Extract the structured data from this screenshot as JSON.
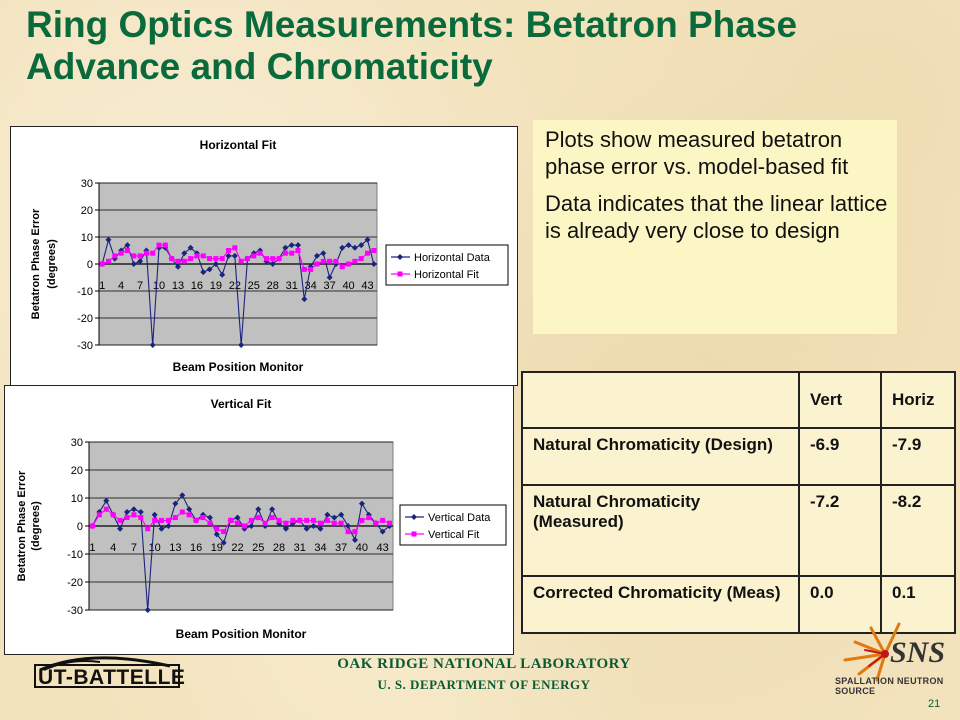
{
  "title": "Ring Optics Measurements: Betatron Phase Advance and Chromaticity",
  "notes": [
    "Plots show measured betatron phase error vs. model-based fit",
    "Data indicates that the linear lattice is already very close to design"
  ],
  "colors": {
    "data": "#1a237e",
    "fit": "#ff00ff",
    "plot_bg": "#c0c0c0",
    "title": "#0a6a3c"
  },
  "chart_data": [
    {
      "type": "line",
      "title": "Horizontal Fit",
      "xlabel": "Beam Position Monitor",
      "ylabel": "Betatron Phase Error (degrees)",
      "ylim": [
        -30,
        30
      ],
      "yticks": [
        -30,
        -20,
        -10,
        0,
        10,
        20,
        30
      ],
      "xticks": [
        "1",
        "4",
        "7",
        "10",
        "13",
        "16",
        "19",
        "22",
        "25",
        "28",
        "31",
        "34",
        "37",
        "40",
        "43"
      ],
      "legend": "right",
      "grid": true,
      "series": [
        {
          "name": "Horizontal Data",
          "marker": "diamond",
          "values": [
            0,
            9,
            2,
            5,
            7,
            0,
            1,
            5,
            -30,
            6,
            6,
            2,
            -1,
            4,
            6,
            4,
            -3,
            -2,
            0,
            -4,
            3,
            3,
            -30,
            2,
            4,
            5,
            1,
            0,
            2,
            6,
            7,
            7,
            -13,
            -1,
            3,
            4,
            -5,
            0,
            6,
            7,
            6,
            7,
            9,
            0
          ]
        },
        {
          "name": "Horizontal Fit",
          "marker": "square",
          "values": [
            0,
            1,
            3,
            4,
            5,
            3,
            3,
            4,
            4,
            7,
            7,
            2,
            1,
            1,
            2,
            3,
            3,
            2,
            2,
            2,
            5,
            6,
            1,
            2,
            3,
            4,
            2,
            2,
            2,
            4,
            4,
            5,
            -2,
            -2,
            0,
            1,
            1,
            1,
            -1,
            0,
            1,
            2,
            4,
            5
          ]
        }
      ]
    },
    {
      "type": "line",
      "title": "Vertical Fit",
      "xlabel": "Beam Position Monitor",
      "ylabel": "Betatron Phase Error (degrees)",
      "ylim": [
        -30,
        30
      ],
      "yticks": [
        -30,
        -20,
        -10,
        0,
        10,
        20,
        30
      ],
      "xticks": [
        "1",
        "4",
        "7",
        "10",
        "13",
        "16",
        "19",
        "22",
        "25",
        "28",
        "31",
        "34",
        "37",
        "40",
        "43"
      ],
      "legend": "right",
      "grid": true,
      "series": [
        {
          "name": "Vertical Data",
          "marker": "diamond",
          "values": [
            0,
            5,
            9,
            4,
            -1,
            5,
            6,
            5,
            -30,
            4,
            -1,
            0,
            8,
            11,
            6,
            2,
            4,
            3,
            -3,
            -6,
            2,
            3,
            -1,
            0,
            6,
            0,
            6,
            1,
            -1,
            1,
            2,
            -1,
            0,
            -1,
            4,
            3,
            4,
            0,
            -5,
            8,
            4,
            1,
            -2,
            0
          ]
        },
        {
          "name": "Vertical Fit",
          "marker": "square",
          "values": [
            0,
            4,
            6,
            4,
            2,
            3,
            4,
            3,
            -1,
            2,
            2,
            2,
            3,
            5,
            4,
            2,
            3,
            1,
            -1,
            -2,
            2,
            1,
            0,
            2,
            3,
            1,
            3,
            2,
            1,
            2,
            2,
            2,
            2,
            1,
            2,
            1,
            1,
            -2,
            -2,
            2,
            3,
            1,
            2,
            1
          ]
        }
      ]
    }
  ],
  "table": {
    "headers": [
      "",
      "Vert",
      "Horiz"
    ],
    "rows": [
      [
        "Natural Chromaticity (Design)",
        "-6.9",
        "-7.9"
      ],
      [
        "Natural Chromaticity (Measured)",
        "-7.2",
        "-8.2"
      ],
      [
        "Corrected Chromaticity (Meas)",
        "0.0",
        "0.1"
      ]
    ]
  },
  "footer": {
    "org_line1": "OAK RIDGE NATIONAL LABORATORY",
    "org_line2": "U. S. DEPARTMENT OF ENERGY",
    "ut_logo_text": "UT-BATTELLE",
    "sns_logo_text": "SNS",
    "sns_subtitle": "SPALLATION NEUTRON SOURCE",
    "page_number": "21"
  }
}
